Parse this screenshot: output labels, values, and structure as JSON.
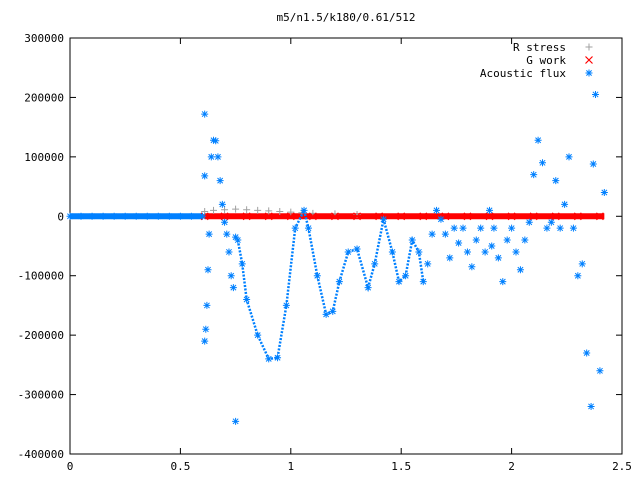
{
  "chart_data": {
    "type": "scatter",
    "title": "m5/n1.5/k180/0.61/512",
    "xlabel": "",
    "ylabel": "",
    "xlim": [
      0,
      2.5
    ],
    "ylim": [
      -400000,
      300000
    ],
    "xticks": [
      0,
      0.5,
      1,
      1.5,
      2,
      2.5
    ],
    "yticks": [
      300000,
      200000,
      100000,
      0,
      -100000,
      -200000,
      -300000,
      -400000
    ],
    "legend_position": "top-right",
    "grid": false,
    "series": [
      {
        "name": "R stress",
        "marker": "plus",
        "color": "#a0a0a0",
        "x": [
          0.61,
          0.65,
          0.7,
          0.75,
          0.8,
          0.85,
          0.9,
          0.95,
          1.0,
          1.05,
          1.1,
          1.2,
          1.3
        ],
        "y": [
          8000,
          10000,
          11000,
          12000,
          11000,
          10000,
          9000,
          8000,
          7000,
          6000,
          5000,
          4000,
          3000
        ]
      },
      {
        "name": "G work",
        "marker": "cross",
        "color": "#ff0000",
        "x": [
          0.61,
          0.7,
          0.8,
          0.9,
          1.0,
          1.1,
          1.2,
          1.3,
          1.4,
          1.5,
          1.6,
          1.7,
          1.8,
          1.9,
          2.0,
          2.1,
          2.2,
          2.3,
          2.4
        ],
        "y": [
          0,
          0,
          0,
          0,
          0,
          0,
          0,
          0,
          0,
          0,
          0,
          0,
          0,
          0,
          0,
          0,
          0,
          0,
          0
        ]
      },
      {
        "name": "Acoustic flux",
        "marker": "star",
        "color": "#0080ff",
        "x": [
          0.0,
          0.05,
          0.1,
          0.15,
          0.2,
          0.25,
          0.3,
          0.35,
          0.4,
          0.45,
          0.5,
          0.55,
          0.6,
          0.61,
          0.61,
          0.61,
          0.615,
          0.62,
          0.625,
          0.63,
          0.64,
          0.65,
          0.66,
          0.67,
          0.68,
          0.69,
          0.7,
          0.71,
          0.72,
          0.73,
          0.74,
          0.75,
          0.75,
          0.76,
          0.78,
          0.8,
          0.85,
          0.9,
          0.94,
          0.98,
          1.02,
          1.06,
          1.08,
          1.12,
          1.16,
          1.19,
          1.22,
          1.26,
          1.3,
          1.35,
          1.38,
          1.42,
          1.46,
          1.49,
          1.52,
          1.55,
          1.58,
          1.6,
          1.62,
          1.64,
          1.66,
          1.68,
          1.7,
          1.72,
          1.74,
          1.76,
          1.78,
          1.8,
          1.82,
          1.84,
          1.86,
          1.88,
          1.9,
          1.91,
          1.92,
          1.94,
          1.96,
          1.98,
          2.0,
          2.02,
          2.04,
          2.06,
          2.08,
          2.1,
          2.12,
          2.14,
          2.16,
          2.18,
          2.2,
          2.22,
          2.24,
          2.26,
          2.28,
          2.3,
          2.32,
          2.34,
          2.36,
          2.37,
          2.38,
          2.4,
          2.42
        ],
        "y": [
          0,
          0,
          0,
          0,
          0,
          0,
          0,
          0,
          0,
          0,
          0,
          0,
          0,
          172000,
          68000,
          -210000,
          -190000,
          -150000,
          -90000,
          -30000,
          100000,
          128000,
          127000,
          100000,
          60000,
          20000,
          -10000,
          -30000,
          -60000,
          -100000,
          -120000,
          -345000,
          -35000,
          -40000,
          -80000,
          -140000,
          -200000,
          -240000,
          -238000,
          -150000,
          -20000,
          10000,
          -20000,
          -100000,
          -165000,
          -160000,
          -110000,
          -60000,
          -55000,
          -120000,
          -80000,
          -5000,
          -60000,
          -110000,
          -100000,
          -40000,
          -60000,
          -110000,
          -80000,
          -30000,
          10000,
          -5000,
          -30000,
          -70000,
          -20000,
          -45000,
          -20000,
          -60000,
          -85000,
          -40000,
          -20000,
          -60000,
          10000,
          -50000,
          -20000,
          -70000,
          -110000,
          -40000,
          -20000,
          -60000,
          -90000,
          -40000,
          -10000,
          70000,
          128000,
          90000,
          -20000,
          -10000,
          60000,
          -20000,
          20000,
          100000,
          -20000,
          -100000,
          -80000,
          -230000,
          -320000,
          88000,
          205000,
          -260000,
          40000
        ]
      }
    ]
  }
}
